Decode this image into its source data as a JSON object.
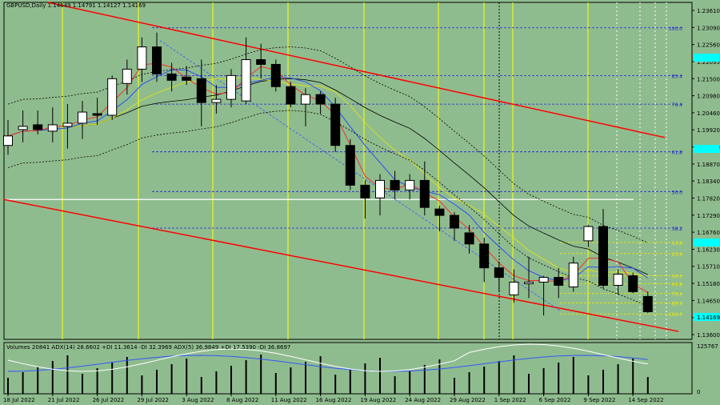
{
  "header": {
    "symbol_info": "GBPUSD,Daily  1.14649 1.14791 1.14127 1.14169"
  },
  "indicator_header": "Volumes 20841  ADX(14) 28.6602 +DI 11.3614 -DI 32.3969  ADX(5) 36.9849 +DI 17.5390 -DI 36.8697",
  "chart_data": {
    "type": "candlestick",
    "price_axis_labels": [
      "1.23610",
      "1.23090",
      "1.22560",
      "1.22035",
      "1.21500",
      "1.20980",
      "1.20460",
      "1.19920",
      "1.19400",
      "1.18870",
      "1.18340",
      "1.17820",
      "1.17290",
      "1.16760",
      "1.16230",
      "1.15710",
      "1.15180",
      "1.14650",
      "1.14169",
      "1.13600"
    ],
    "current_price": "1.14169",
    "highlight_prices": [
      "1.22035",
      "1.19400",
      "1.16230",
      "1.14169"
    ],
    "date_labels": [
      "18 Jul 2022",
      "21 Jul 2022",
      "26 Jul 2022",
      "29 Jul 2022",
      "3 Aug 2022",
      "8 Aug 2022",
      "11 Aug 2022",
      "16 Aug 2022",
      "19 Aug 2022",
      "24 Aug 2022",
      "29 Aug 2022",
      "1 Sep 2022",
      "6 Sep 2022",
      "9 Sep 2022",
      "14 Sep 2022"
    ],
    "date_label_positions": [
      0,
      3,
      6,
      9,
      12,
      15,
      18,
      21,
      24,
      27,
      30,
      33,
      36,
      39,
      42
    ],
    "candles": [
      {
        "o": 1.194,
        "h": 1.202,
        "l": 1.191,
        "c": 1.197
      },
      {
        "o": 1.199,
        "h": 1.205,
        "l": 1.195,
        "c": 1.2
      },
      {
        "o": 1.2005,
        "h": 1.205,
        "l": 1.1975,
        "c": 1.199
      },
      {
        "o": 1.1985,
        "h": 1.206,
        "l": 1.195,
        "c": 1.2005
      },
      {
        "o": 1.2,
        "h": 1.207,
        "l": 1.193,
        "c": 1.201
      },
      {
        "o": 1.201,
        "h": 1.208,
        "l": 1.196,
        "c": 1.2045
      },
      {
        "o": 1.204,
        "h": 1.209,
        "l": 1.2005,
        "c": 1.2035
      },
      {
        "o": 1.2035,
        "h": 1.216,
        "l": 1.202,
        "c": 1.215
      },
      {
        "o": 1.2135,
        "h": 1.221,
        "l": 1.21,
        "c": 1.218
      },
      {
        "o": 1.218,
        "h": 1.228,
        "l": 1.214,
        "c": 1.225
      },
      {
        "o": 1.225,
        "h": 1.2295,
        "l": 1.214,
        "c": 1.2165
      },
      {
        "o": 1.2165,
        "h": 1.22,
        "l": 1.211,
        "c": 1.2145
      },
      {
        "o": 1.2155,
        "h": 1.219,
        "l": 1.213,
        "c": 1.2145
      },
      {
        "o": 1.215,
        "h": 1.221,
        "l": 1.2,
        "c": 1.2075
      },
      {
        "o": 1.2075,
        "h": 1.213,
        "l": 1.204,
        "c": 1.2085
      },
      {
        "o": 1.2085,
        "h": 1.218,
        "l": 1.206,
        "c": 1.216
      },
      {
        "o": 1.208,
        "h": 1.228,
        "l": 1.207,
        "c": 1.221
      },
      {
        "o": 1.221,
        "h": 1.226,
        "l": 1.215,
        "c": 1.2195
      },
      {
        "o": 1.2195,
        "h": 1.221,
        "l": 1.211,
        "c": 1.2125
      },
      {
        "o": 1.2125,
        "h": 1.214,
        "l": 1.206,
        "c": 1.207
      },
      {
        "o": 1.207,
        "h": 1.212,
        "l": 1.2,
        "c": 1.21
      },
      {
        "o": 1.21,
        "h": 1.211,
        "l": 1.204,
        "c": 1.207
      },
      {
        "o": 1.207,
        "h": 1.209,
        "l": 1.192,
        "c": 1.194
      },
      {
        "o": 1.194,
        "h": 1.196,
        "l": 1.18,
        "c": 1.1815
      },
      {
        "o": 1.1815,
        "h": 1.183,
        "l": 1.171,
        "c": 1.1775
      },
      {
        "o": 1.1775,
        "h": 1.185,
        "l": 1.172,
        "c": 1.183
      },
      {
        "o": 1.183,
        "h": 1.186,
        "l": 1.177,
        "c": 1.18
      },
      {
        "o": 1.18,
        "h": 1.185,
        "l": 1.177,
        "c": 1.183
      },
      {
        "o": 1.183,
        "h": 1.189,
        "l": 1.172,
        "c": 1.1745
      },
      {
        "o": 1.174,
        "h": 1.175,
        "l": 1.167,
        "c": 1.172
      },
      {
        "o": 1.172,
        "h": 1.173,
        "l": 1.164,
        "c": 1.168
      },
      {
        "o": 1.1665,
        "h": 1.169,
        "l": 1.16,
        "c": 1.163
      },
      {
        "o": 1.163,
        "h": 1.165,
        "l": 1.151,
        "c": 1.1555
      },
      {
        "o": 1.1555,
        "h": 1.1575,
        "l": 1.148,
        "c": 1.1525
      },
      {
        "o": 1.147,
        "h": 1.155,
        "l": 1.1445,
        "c": 1.151
      },
      {
        "o": 1.1505,
        "h": 1.159,
        "l": 1.146,
        "c": 1.151
      },
      {
        "o": 1.151,
        "h": 1.153,
        "l": 1.1405,
        "c": 1.1525
      },
      {
        "o": 1.1525,
        "h": 1.1555,
        "l": 1.146,
        "c": 1.15
      },
      {
        "o": 1.1495,
        "h": 1.159,
        "l": 1.148,
        "c": 1.157
      },
      {
        "o": 1.164,
        "h": 1.169,
        "l": 1.162,
        "c": 1.1685
      },
      {
        "o": 1.1685,
        "h": 1.174,
        "l": 1.149,
        "c": 1.15
      },
      {
        "o": 1.15,
        "h": 1.155,
        "l": 1.147,
        "c": 1.1535
      },
      {
        "o": 1.153,
        "h": 1.154,
        "l": 1.1475,
        "c": 1.148
      },
      {
        "o": 1.1465,
        "h": 1.148,
        "l": 1.1413,
        "c": 1.1417
      }
    ],
    "fib_levels": [
      {
        "label": "100.0",
        "price": 1.231,
        "color": "#2222cc"
      },
      {
        "label": "85.4",
        "price": 1.216,
        "color": "#2222cc"
      },
      {
        "label": "76.4",
        "price": 1.207,
        "color": "#2222cc"
      },
      {
        "label": "61.8",
        "price": 1.192,
        "color": "#2222cc"
      },
      {
        "label": "50.0",
        "price": 1.1795,
        "color": "#2222cc"
      },
      {
        "label": "38.2",
        "price": 1.168,
        "color": "#2222cc"
      },
      {
        "label": "14.6",
        "price": 1.1635,
        "color": "#e8e800"
      },
      {
        "label": "23.6",
        "price": 1.16,
        "color": "#e8e800"
      },
      {
        "label": "50.0",
        "price": 1.153,
        "color": "#e8e800"
      },
      {
        "label": "61.8",
        "price": 1.1505,
        "color": "#e8e800"
      },
      {
        "label": "76.4",
        "price": 1.1475,
        "color": "#e8e800"
      },
      {
        "label": "85.4",
        "price": 1.1445,
        "color": "#e8e800"
      },
      {
        "label": "100.0",
        "price": 1.141,
        "color": "#e8e800"
      }
    ],
    "volumes_axis_max": "125767",
    "volumes_axis_min": "0"
  },
  "colors": {
    "background": "#8fbc8f",
    "trend_line": "#ff0000",
    "yellow_vline": "#ffff00",
    "highlight_box": "#00ffff",
    "fib_blue": "#2222cc",
    "adx_white": "#ffffff",
    "adx_blue": "#3355ff"
  }
}
